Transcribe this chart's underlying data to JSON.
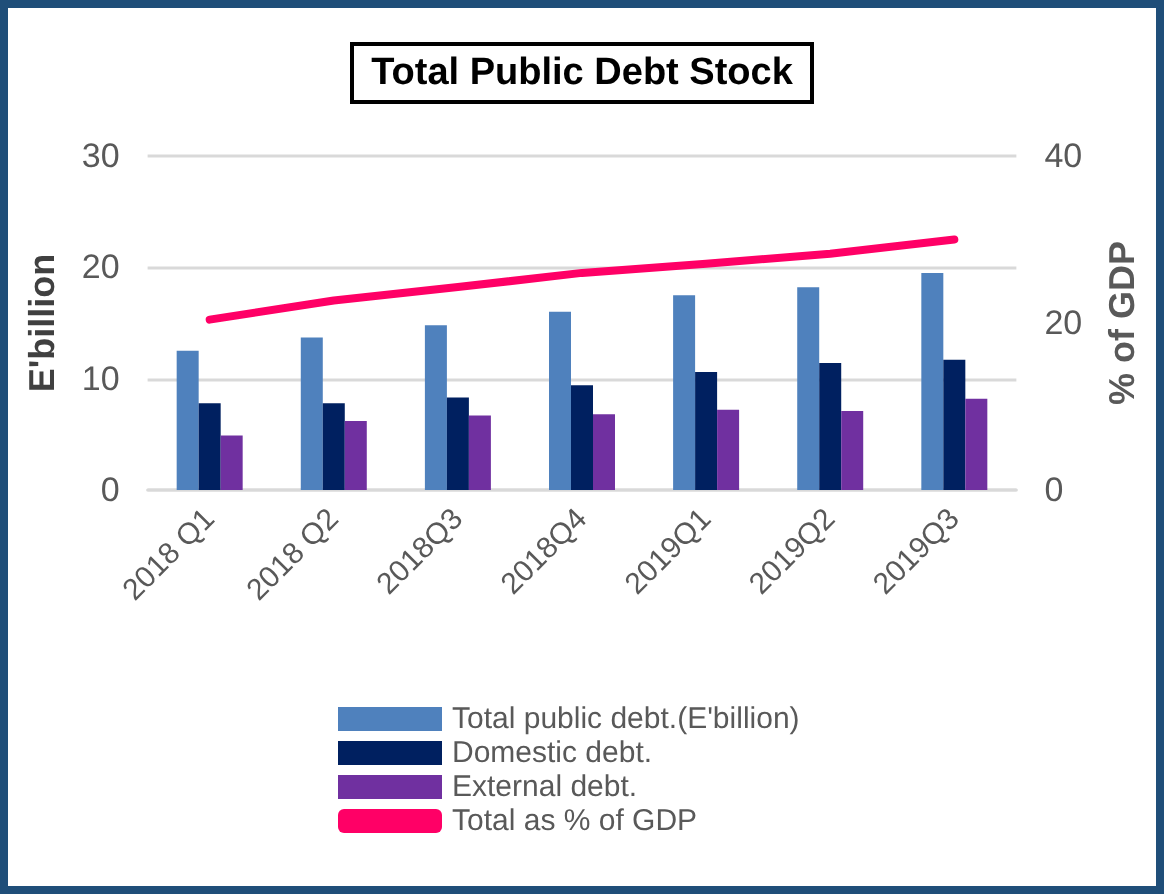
{
  "chart_data": {
    "type": "bar",
    "title": "Total Public Debt Stock",
    "ylabel": "E'billion",
    "y2label": "% of GDP",
    "categories": [
      "2018 Q1",
      "2018 Q2",
      "2018Q3",
      "2018Q4",
      "2019Q1",
      "2019Q2",
      "2019Q3"
    ],
    "series": [
      {
        "name": "Total public debt.(E'billion)",
        "color": "#4f81bd",
        "values": [
          12.5,
          13.7,
          14.8,
          16.0,
          17.5,
          18.2,
          19.5
        ]
      },
      {
        "name": "Domestic debt.",
        "color": "#002060",
        "values": [
          7.8,
          7.8,
          8.3,
          9.4,
          10.6,
          11.4,
          11.7
        ]
      },
      {
        "name": "External debt.",
        "color": "#7030a0",
        "values": [
          4.9,
          6.2,
          6.7,
          6.8,
          7.2,
          7.1,
          8.2
        ]
      },
      {
        "name": "Total as % of GDP",
        "type": "line",
        "axis": "y2",
        "color": "#ff0066",
        "values": [
          20.4,
          22.7,
          24.3,
          26.0,
          27.1,
          28.3,
          30.0
        ]
      }
    ],
    "ylim": [
      0,
      30
    ],
    "yticks": [
      0,
      10,
      20,
      30
    ],
    "y2lim": [
      0,
      40
    ],
    "y2ticks": [
      0,
      20,
      40
    ],
    "grid": "y",
    "legend": "bottom",
    "marker": "none"
  }
}
